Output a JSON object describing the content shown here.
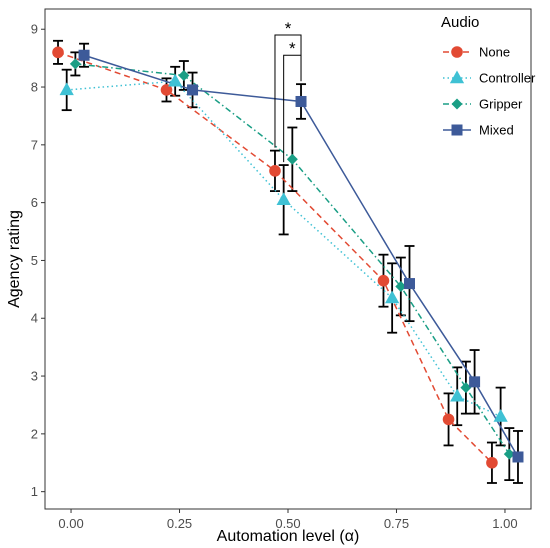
{
  "chart_data": {
    "type": "line",
    "xlabel": "Automation level (α)",
    "ylabel": "Agency rating",
    "x_ticks": [
      "0.00",
      "0.25",
      "0.50",
      "0.75",
      "1.00"
    ],
    "y_ticks": [
      "1",
      "2",
      "3",
      "4",
      "5",
      "6",
      "7",
      "8",
      "9"
    ],
    "xlim": [
      -0.06,
      1.06
    ],
    "ylim": [
      0.7,
      9.35
    ],
    "grid": false,
    "legend": {
      "title": "Audio",
      "position": "top-right"
    },
    "series": [
      {
        "name": "None",
        "color": "#E24A33",
        "marker": "circle",
        "linestyle": "dashed",
        "x": [
          -0.03,
          0.22,
          0.47,
          0.72,
          0.87,
          0.97
        ],
        "y": [
          8.6,
          7.95,
          6.55,
          4.65,
          2.25,
          1.5
        ],
        "err": [
          0.2,
          0.2,
          0.35,
          0.45,
          0.45,
          0.35
        ]
      },
      {
        "name": "Controller",
        "color": "#3FC1D4",
        "marker": "triangle",
        "linestyle": "dotted",
        "x": [
          -0.01,
          0.24,
          0.49,
          0.74,
          0.89,
          0.99
        ],
        "y": [
          7.95,
          8.1,
          6.05,
          4.35,
          2.65,
          2.3
        ],
        "err": [
          0.35,
          0.25,
          0.6,
          0.6,
          0.5,
          0.5
        ]
      },
      {
        "name": "Gripper",
        "color": "#1A9E85",
        "marker": "diamond",
        "linestyle": "dotdash",
        "x": [
          0.01,
          0.26,
          0.51,
          0.76,
          0.91,
          1.01
        ],
        "y": [
          8.4,
          8.2,
          6.75,
          4.55,
          2.8,
          1.65
        ],
        "err": [
          0.2,
          0.25,
          0.55,
          0.5,
          0.45,
          0.45
        ]
      },
      {
        "name": "Mixed",
        "color": "#3D5A99",
        "marker": "square",
        "linestyle": "solid",
        "x": [
          0.03,
          0.28,
          0.53,
          0.78,
          0.93,
          1.03
        ],
        "y": [
          8.55,
          7.95,
          7.75,
          4.6,
          2.9,
          1.6
        ],
        "err": [
          0.2,
          0.3,
          0.3,
          0.65,
          0.55,
          0.45
        ]
      }
    ],
    "significance": [
      {
        "label": "*",
        "x1": 0.47,
        "x2": 0.53,
        "y": 8.9
      },
      {
        "label": "*",
        "x1": 0.49,
        "x2": 0.53,
        "y": 8.55
      }
    ]
  }
}
